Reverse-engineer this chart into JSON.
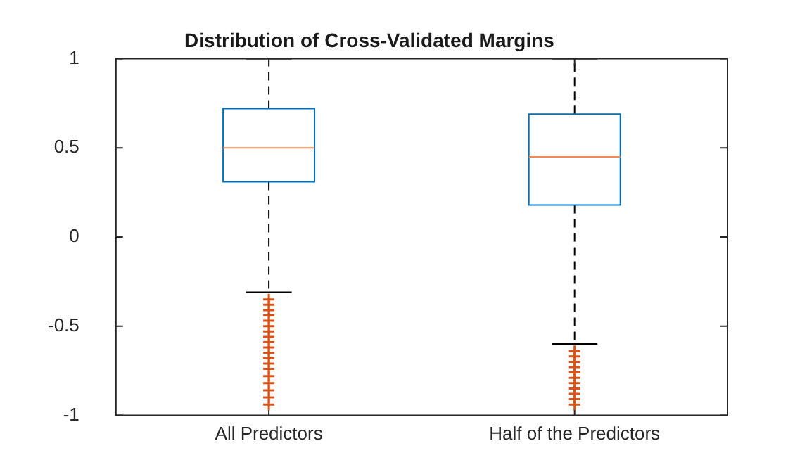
{
  "chart_data": {
    "type": "box",
    "title": "Distribution of Cross-Validated Margins",
    "categories": [
      "All Predictors",
      "Half of the Predictors"
    ],
    "boxes": [
      {
        "low": -0.31,
        "q1": 0.31,
        "median": 0.5,
        "q3": 0.72,
        "high": 1,
        "outliers": [
          -0.35,
          -0.38,
          -0.41,
          -0.44,
          -0.47,
          -0.5,
          -0.53,
          -0.56,
          -0.59,
          -0.62,
          -0.65,
          -0.68,
          -0.71,
          -0.74,
          -0.78,
          -0.82,
          -0.86,
          -0.9,
          -0.94
        ]
      },
      {
        "low": -0.6,
        "q1": 0.18,
        "median": 0.45,
        "q3": 0.69,
        "high": 1,
        "outliers": [
          -0.64,
          -0.67,
          -0.7,
          -0.73,
          -0.76,
          -0.79,
          -0.82,
          -0.85,
          -0.88,
          -0.91,
          -0.94
        ]
      }
    ],
    "color": "#0072bd",
    "marker": "cross",
    "ylim": [
      -1,
      1
    ],
    "yticks": [
      -1,
      -0.5,
      0,
      0.5,
      1
    ],
    "grid": false,
    "legend": false
  }
}
